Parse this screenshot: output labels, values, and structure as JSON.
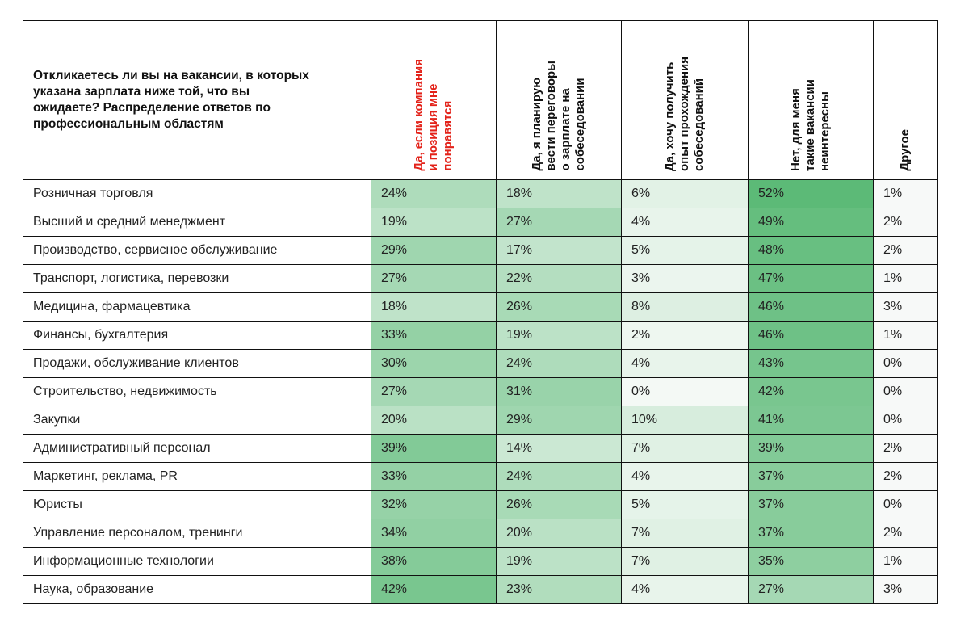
{
  "chart_data": {
    "type": "heatmap",
    "title": "Откликаетесь ли вы на вакансии, в которых указана зарплата ниже той, что вы ожидаете? Распределение ответов по профессиональным областям",
    "title_lines": [
      "Откликаетесь ли вы на вакансии, в которых",
      "указана зарплата ниже той, что вы",
      "ожидаете? Распределение ответов по",
      "профессиональным областям"
    ],
    "columns": [
      {
        "label": "Да, если компания и позиция мне понравятся",
        "lines": [
          "Да, если компания",
          "и позиция мне",
          "понравятся"
        ],
        "highlight": true
      },
      {
        "label": "Да, я планирую вести переговоры о зарплате на собеседовании",
        "lines": [
          "Да, я планирую",
          "вести переговоры",
          "о зарплате на",
          "собеседовании"
        ]
      },
      {
        "label": "Да, хочу получить опыт прохождения собеседований",
        "lines": [
          "Да, хочу получить",
          "опыт прохождения",
          "собеседований"
        ]
      },
      {
        "label": "Нет, для меня такие вакансии неинтересны",
        "lines": [
          "Нет, для меня",
          "такие вакансии",
          "неинтересны"
        ]
      },
      {
        "label": "Другое",
        "lines": [
          "Другое"
        ]
      }
    ],
    "rows": [
      {
        "name": "Розничная торговля",
        "values": [
          24,
          18,
          6,
          52,
          1
        ]
      },
      {
        "name": "Высший и средний менеджмент",
        "values": [
          19,
          27,
          4,
          49,
          2
        ]
      },
      {
        "name": "Производство, сервисное обслуживание",
        "values": [
          29,
          17,
          5,
          48,
          2
        ]
      },
      {
        "name": "Транспорт, логистика, перевозки",
        "values": [
          27,
          22,
          3,
          47,
          1
        ]
      },
      {
        "name": "Медицина, фармацевтика",
        "values": [
          18,
          26,
          8,
          46,
          3
        ]
      },
      {
        "name": "Финансы, бухгалтерия",
        "values": [
          33,
          19,
          2,
          46,
          1
        ]
      },
      {
        "name": "Продажи, обслуживание клиентов",
        "values": [
          30,
          24,
          4,
          43,
          0
        ]
      },
      {
        "name": "Строительство, недвижимость",
        "values": [
          27,
          31,
          0,
          42,
          0
        ]
      },
      {
        "name": "Закупки",
        "values": [
          20,
          29,
          10,
          41,
          0
        ]
      },
      {
        "name": "Административный персонал",
        "values": [
          39,
          14,
          7,
          39,
          2
        ]
      },
      {
        "name": "Маркетинг, реклама, PR",
        "values": [
          33,
          24,
          4,
          37,
          2
        ]
      },
      {
        "name": "Юристы",
        "values": [
          32,
          26,
          5,
          37,
          0
        ]
      },
      {
        "name": "Управление персоналом, тренинги",
        "values": [
          34,
          20,
          7,
          37,
          2
        ]
      },
      {
        "name": "Информационные технологии",
        "values": [
          38,
          19,
          7,
          35,
          1
        ]
      },
      {
        "name": "Наука, образование",
        "values": [
          42,
          23,
          4,
          27,
          3
        ]
      }
    ],
    "unit": "%",
    "colors": {
      "low": "#f4f9f5",
      "high": "#5cba77",
      "highlight_header": "#e32219",
      "last_column": "#f7f9f8"
    }
  }
}
